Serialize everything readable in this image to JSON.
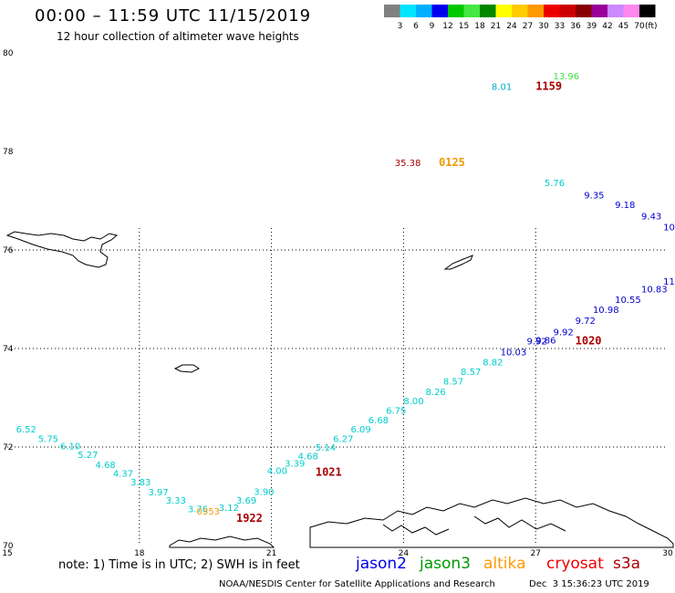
{
  "header": {
    "title": "00:00 – 11:59 UTC 11/15/2019",
    "subtitle": "12 hour collection of altimeter wave heights"
  },
  "colorbar": {
    "colors": [
      "#808080",
      "#00e5ff",
      "#00b0ff",
      "#0000ee",
      "#00c800",
      "#44e844",
      "#008800",
      "#ffff00",
      "#ffcc00",
      "#ff9900",
      "#ee0000",
      "#cc0000",
      "#880000",
      "#990099",
      "#cc88ff",
      "#ff88ee",
      "#000000"
    ],
    "labels": [
      "3",
      "6",
      "9",
      "12",
      "15",
      "18",
      "21",
      "24",
      "27",
      "30",
      "33",
      "36",
      "39",
      "42",
      "45",
      "70"
    ],
    "unit": "(ft)"
  },
  "axes": {
    "x_ticks": [
      "15",
      "18",
      "21",
      "24",
      "27",
      "30"
    ],
    "y_ticks": [
      "80",
      "78",
      "76",
      "74",
      "72",
      "70"
    ]
  },
  "legend": [
    {
      "label": "jason2",
      "color": "#0000ee"
    },
    {
      "label": "jason3",
      "color": "#009900"
    },
    {
      "label": "altika",
      "color": "#ff9900"
    },
    {
      "label": "cryosat",
      "color": "#ee0000"
    },
    {
      "label": "s3a",
      "color": "#aa0000"
    }
  ],
  "footer": {
    "note": "note: 1) Time is in UTC; 2) SWH is in feet",
    "credit": "NOAA/NESDIS Center for Satellite Applications and Research",
    "date": "Dec  3 15:36:23 UTC 2019"
  },
  "chart_data": {
    "type": "scatter",
    "xlim": [
      15,
      30
    ],
    "ylim": [
      70,
      80
    ],
    "labels": [
      {
        "x": 15.2,
        "y": 72.3,
        "text": "6.52",
        "color": "#00cccc"
      },
      {
        "x": 15.7,
        "y": 72.1,
        "text": "5.75",
        "color": "#00cccc"
      },
      {
        "x": 16.2,
        "y": 71.95,
        "text": "6.10",
        "color": "#00cccc"
      },
      {
        "x": 16.6,
        "y": 71.78,
        "text": "5.27",
        "color": "#00cccc"
      },
      {
        "x": 17.0,
        "y": 71.57,
        "text": "4.68",
        "color": "#00cccc"
      },
      {
        "x": 17.4,
        "y": 71.4,
        "text": "4.37",
        "color": "#00cccc"
      },
      {
        "x": 17.8,
        "y": 71.22,
        "text": "3.83",
        "color": "#00cccc"
      },
      {
        "x": 18.2,
        "y": 71.02,
        "text": "3.97",
        "color": "#00cccc"
      },
      {
        "x": 18.6,
        "y": 70.85,
        "text": "3.33",
        "color": "#00cccc"
      },
      {
        "x": 19.1,
        "y": 70.68,
        "text": "3.76",
        "color": "#00cccc"
      },
      {
        "x": 19.8,
        "y": 70.7,
        "text": "3.12",
        "color": "#00cccc"
      },
      {
        "x": 20.2,
        "y": 70.85,
        "text": "3.69",
        "color": "#00cccc"
      },
      {
        "x": 20.6,
        "y": 71.03,
        "text": "3.90",
        "color": "#00cccc"
      },
      {
        "x": 20.9,
        "y": 71.45,
        "text": "4.00",
        "color": "#00cccc"
      },
      {
        "x": 21.3,
        "y": 71.6,
        "text": "3.39",
        "color": "#00cccc"
      },
      {
        "x": 21.6,
        "y": 71.75,
        "text": "4.68",
        "color": "#00cccc"
      },
      {
        "x": 22.0,
        "y": 71.93,
        "text": "5.14",
        "color": "#00cccc"
      },
      {
        "x": 22.4,
        "y": 72.1,
        "text": "6.27",
        "color": "#00cccc"
      },
      {
        "x": 22.8,
        "y": 72.3,
        "text": "6.09",
        "color": "#00cccc"
      },
      {
        "x": 23.2,
        "y": 72.48,
        "text": "6.68",
        "color": "#00cccc"
      },
      {
        "x": 23.6,
        "y": 72.68,
        "text": "6.75",
        "color": "#00cccc"
      },
      {
        "x": 24.0,
        "y": 72.87,
        "text": "8.00",
        "color": "#00cccc"
      },
      {
        "x": 24.5,
        "y": 73.06,
        "text": "8.26",
        "color": "#00cccc"
      },
      {
        "x": 24.9,
        "y": 73.27,
        "text": "8.57",
        "color": "#00cccc"
      },
      {
        "x": 25.3,
        "y": 73.46,
        "text": "8.57",
        "color": "#00cccc"
      },
      {
        "x": 25.8,
        "y": 73.66,
        "text": "8.82",
        "color": "#00cccc"
      },
      {
        "x": 26.2,
        "y": 73.86,
        "text": "10.03",
        "color": "#0000cc"
      },
      {
        "x": 26.8,
        "y": 74.08,
        "text": "9.92",
        "color": "#0000cc"
      },
      {
        "x": 27.0,
        "y": 74.1,
        "text": "9.86",
        "color": "#0000cc"
      },
      {
        "x": 27.4,
        "y": 74.27,
        "text": "9.92",
        "color": "#0000cc"
      },
      {
        "x": 27.9,
        "y": 74.5,
        "text": "9.72",
        "color": "#0000cc"
      },
      {
        "x": 28.3,
        "y": 74.72,
        "text": "10.98",
        "color": "#0000cc"
      },
      {
        "x": 28.8,
        "y": 74.93,
        "text": "10.55",
        "color": "#0000cc"
      },
      {
        "x": 29.4,
        "y": 75.14,
        "text": "10.83",
        "color": "#0000cc"
      },
      {
        "x": 29.9,
        "y": 75.3,
        "text": "11",
        "color": "#0000cc"
      },
      {
        "x": 27.2,
        "y": 77.3,
        "text": "5.76",
        "color": "#00cccc"
      },
      {
        "x": 28.1,
        "y": 77.05,
        "text": "9.35",
        "color": "#0000cc"
      },
      {
        "x": 28.8,
        "y": 76.85,
        "text": "9.18",
        "color": "#0000cc"
      },
      {
        "x": 29.4,
        "y": 76.62,
        "text": "9.43",
        "color": "#0000cc"
      },
      {
        "x": 29.9,
        "y": 76.4,
        "text": "10",
        "color": "#0000cc"
      },
      {
        "x": 26.0,
        "y": 79.25,
        "text": "8.01",
        "color": "#00aacc"
      },
      {
        "x": 27.4,
        "y": 79.46,
        "text": "13.96",
        "color": "#44dd44"
      },
      {
        "x": 23.8,
        "y": 77.7,
        "text": "35.38",
        "color": "#aa0000"
      },
      {
        "x": 19.3,
        "y": 70.63,
        "text": "0353",
        "color": "#ff9900"
      }
    ],
    "time_labels": [
      {
        "x": 27.0,
        "y": 79.25,
        "text": "1159",
        "color": "#aa0000"
      },
      {
        "x": 24.8,
        "y": 77.7,
        "text": "0125",
        "color": "#ee9900"
      },
      {
        "x": 27.9,
        "y": 74.08,
        "text": "1020",
        "color": "#aa0000"
      },
      {
        "x": 22.0,
        "y": 71.42,
        "text": "1021",
        "color": "#aa0000"
      },
      {
        "x": 20.2,
        "y": 70.48,
        "text": "1922",
        "color": "#aa0000"
      }
    ]
  }
}
